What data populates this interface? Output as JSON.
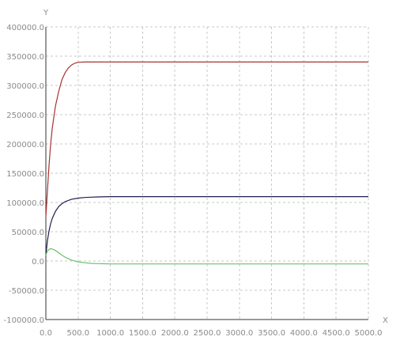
{
  "chart_data": {
    "type": "line",
    "xlabel": "X",
    "ylabel": "Y",
    "xlim": [
      0,
      5000
    ],
    "ylim": [
      -100000,
      400000
    ],
    "x_ticks": [
      "0.0",
      "500.0",
      "1000.0",
      "1500.0",
      "2000.0",
      "2500.0",
      "3000.0",
      "3500.0",
      "4000.0",
      "4500.0",
      "5000.0"
    ],
    "y_ticks": [
      "400000.0",
      "350000.0",
      "300000.0",
      "250000.0",
      "200000.0",
      "150000.0",
      "100000.0",
      "50000.0",
      "0.0",
      "-50000.0",
      "-100000.0"
    ],
    "grid": true,
    "series": [
      {
        "color": "#a83232",
        "x": [
          0,
          25,
          50,
          75,
          100,
          150,
          200,
          250,
          300,
          350,
          400,
          450,
          500,
          600,
          700,
          800,
          1000,
          1500,
          2000,
          3000,
          4000,
          5000
        ],
        "y": [
          75000,
          120000,
          165000,
          200000,
          228000,
          265000,
          290000,
          310000,
          322000,
          330000,
          335000,
          338000,
          339500,
          340000,
          340000,
          340000,
          340000,
          340000,
          340000,
          340000,
          340000,
          340000
        ]
      },
      {
        "color": "#1f1f4f",
        "x": [
          0,
          25,
          50,
          75,
          100,
          150,
          200,
          250,
          300,
          400,
          500,
          600,
          700,
          800,
          1000,
          1500,
          2000,
          3000,
          4000,
          5000
        ],
        "y": [
          10000,
          35000,
          52000,
          64000,
          73000,
          85000,
          93000,
          98000,
          101500,
          105500,
          107500,
          108500,
          109000,
          109500,
          110000,
          110000,
          110000,
          110000,
          110000,
          110000
        ]
      },
      {
        "color": "#6cc06c",
        "x": [
          0,
          25,
          50,
          75,
          100,
          150,
          200,
          250,
          300,
          400,
          500,
          600,
          700,
          800,
          1000,
          1500,
          2000,
          3000,
          4000,
          5000
        ],
        "y": [
          10000,
          17000,
          20000,
          21000,
          20500,
          18000,
          14000,
          10000,
          6500,
          1500,
          -1500,
          -3000,
          -4000,
          -4500,
          -5000,
          -5000,
          -5000,
          -5000,
          -5000,
          -5000
        ]
      }
    ]
  }
}
